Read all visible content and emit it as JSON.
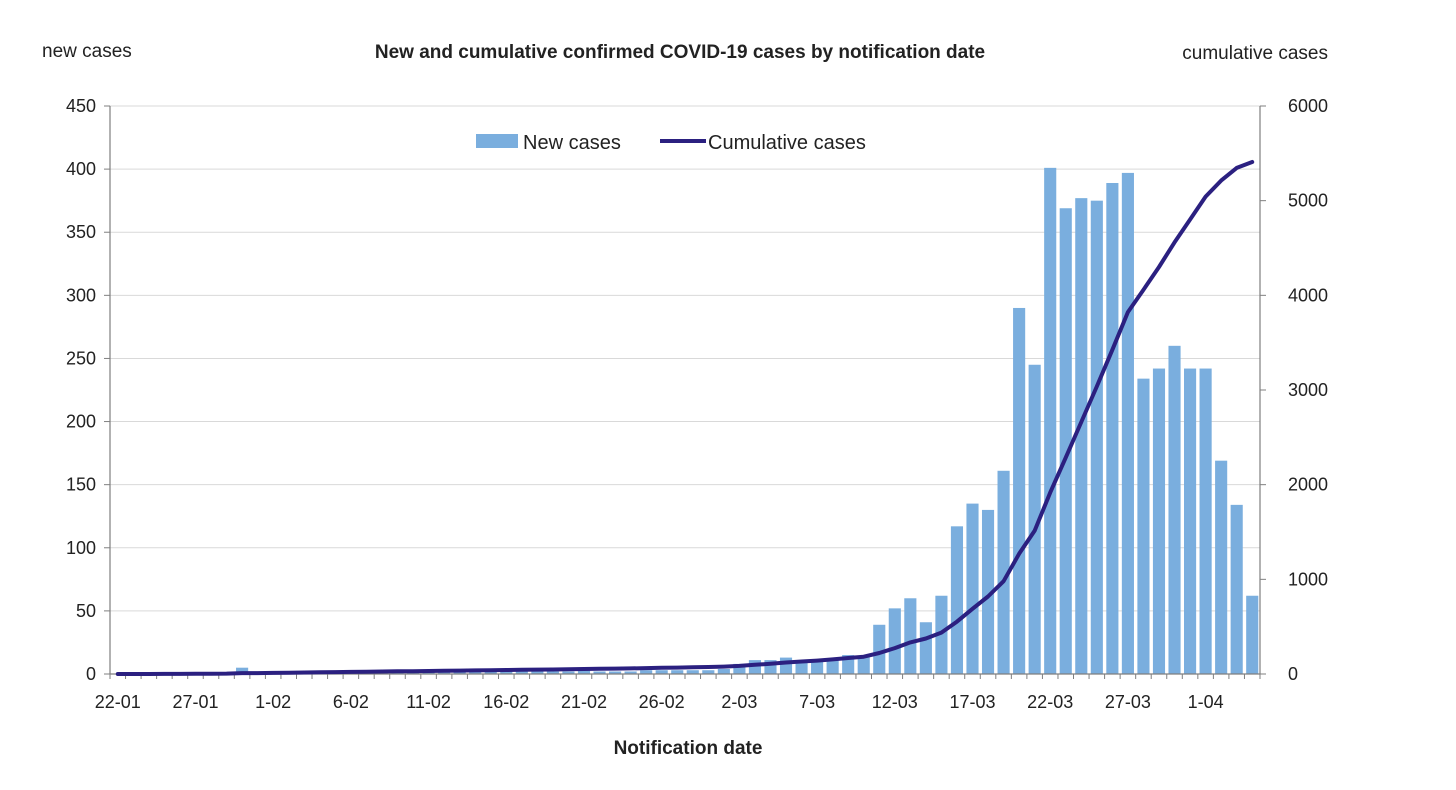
{
  "chart_data": {
    "type": "bar",
    "title": "New and cumulative confirmed COVID-19 cases by notification date",
    "xlabel": "Notification date",
    "ylabel_left": "new cases",
    "ylabel_right": "cumulative cases",
    "ylim_left": [
      0,
      450
    ],
    "ylim_right": [
      0,
      6000
    ],
    "yticks_left": [
      0,
      50,
      100,
      150,
      200,
      250,
      300,
      350,
      400,
      450
    ],
    "yticks_right": [
      0,
      1000,
      2000,
      3000,
      4000,
      5000,
      6000
    ],
    "grid": true,
    "legend_position": "top-center",
    "categories": [
      "22-01",
      "23-01",
      "24-01",
      "25-01",
      "26-01",
      "27-01",
      "28-01",
      "29-01",
      "30-01",
      "31-01",
      "1-02",
      "2-02",
      "3-02",
      "4-02",
      "5-02",
      "6-02",
      "7-02",
      "8-02",
      "9-02",
      "10-02",
      "11-02",
      "12-02",
      "13-02",
      "14-02",
      "15-02",
      "16-02",
      "17-02",
      "18-02",
      "19-02",
      "20-02",
      "21-02",
      "22-02",
      "23-02",
      "24-02",
      "25-02",
      "26-02",
      "27-02",
      "28-02",
      "29-02",
      "1-03",
      "2-03",
      "3-03",
      "4-03",
      "5-03",
      "6-03",
      "7-03",
      "8-03",
      "9-03",
      "10-03",
      "11-03",
      "12-03",
      "13-03",
      "14-03",
      "15-03",
      "16-03",
      "17-03",
      "18-03",
      "19-03",
      "20-03",
      "21-03",
      "22-03",
      "23-03",
      "24-03",
      "25-03",
      "26-03",
      "27-03",
      "28-03",
      "29-03",
      "30-03",
      "31-03",
      "1-04",
      "2-04",
      "3-04",
      "4-04"
    ],
    "x_tick_labels": [
      "22-01",
      "27-01",
      "1-02",
      "6-02",
      "11-02",
      "16-02",
      "21-02",
      "26-02",
      "2-03",
      "7-03",
      "12-03",
      "17-03",
      "22-03",
      "27-03",
      "1-04"
    ],
    "series": [
      {
        "name": "New cases",
        "type": "bar",
        "axis": "left",
        "color": "#7aaede",
        "values": [
          0,
          0,
          0,
          1,
          0,
          1,
          1,
          1,
          5,
          1,
          2,
          2,
          2,
          2,
          2,
          2,
          2,
          2,
          2,
          2,
          2,
          2,
          2,
          2,
          2,
          2,
          2,
          2,
          2,
          2,
          3,
          2,
          2,
          2,
          3,
          3,
          3,
          3,
          3,
          4,
          8,
          11,
          11,
          13,
          11,
          10,
          12,
          15,
          14,
          39,
          52,
          60,
          41,
          62,
          117,
          135,
          130,
          161,
          290,
          245,
          401,
          369,
          377,
          375,
          389,
          397,
          234,
          242,
          260,
          242,
          242,
          169,
          134,
          62
        ]
      },
      {
        "name": "Cumulative cases",
        "type": "line",
        "axis": "right",
        "color": "#2b2080",
        "values": [
          0,
          0,
          0,
          1,
          1,
          2,
          3,
          4,
          9,
          10,
          12,
          14,
          16,
          18,
          20,
          22,
          24,
          26,
          28,
          30,
          32,
          34,
          36,
          38,
          40,
          42,
          44,
          46,
          48,
          50,
          53,
          55,
          57,
          59,
          62,
          65,
          68,
          71,
          74,
          78,
          86,
          97,
          108,
          121,
          132,
          142,
          154,
          169,
          183,
          222,
          274,
          334,
          375,
          437,
          554,
          689,
          819,
          980,
          1270,
          1515,
          1916,
          2285,
          2662,
          3037,
          3426,
          3823,
          4057,
          4299,
          4559,
          4801,
          5043,
          5212,
          5346,
          5408
        ]
      }
    ]
  }
}
